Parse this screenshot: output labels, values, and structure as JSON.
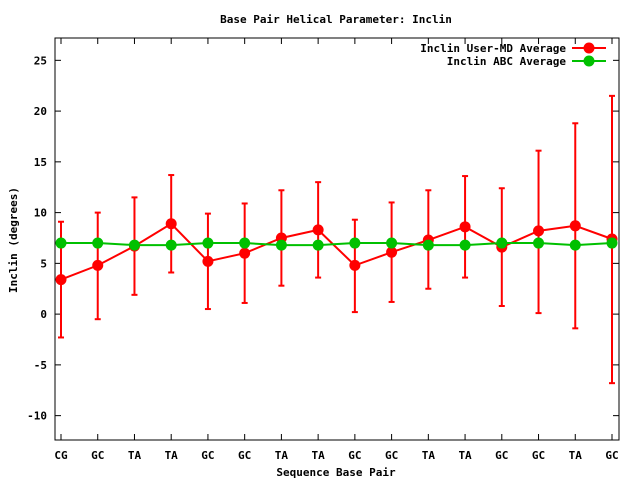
{
  "chart_data": {
    "type": "line",
    "title": "Base Pair Helical Parameter: Inclin",
    "xlabel": "Sequence Base Pair",
    "ylabel": "Inclin (degrees)",
    "ylim": [
      -12.4,
      27.2
    ],
    "yticks": [
      -10,
      -5,
      0,
      5,
      10,
      15,
      20,
      25
    ],
    "grid": false,
    "legend_position": "top-right",
    "categories": [
      "CG",
      "GC",
      "TA",
      "TA",
      "GC",
      "GC",
      "TA",
      "TA",
      "GC",
      "GC",
      "TA",
      "TA",
      "GC",
      "GC",
      "TA",
      "GC"
    ],
    "series": [
      {
        "name": "Inclin User-MD Average",
        "color": "#ff0000",
        "values": [
          3.4,
          4.8,
          6.7,
          8.9,
          5.2,
          6.0,
          7.5,
          8.3,
          4.8,
          6.1,
          7.3,
          8.6,
          6.6,
          8.2,
          8.7,
          7.4
        ],
        "error_high": [
          9.1,
          10.0,
          11.5,
          13.7,
          9.9,
          10.9,
          12.2,
          13.0,
          9.3,
          11.0,
          12.2,
          13.6,
          12.4,
          16.1,
          18.8,
          21.5
        ],
        "error_low": [
          -2.3,
          -0.5,
          1.9,
          4.1,
          0.5,
          1.1,
          2.8,
          3.6,
          0.2,
          1.2,
          2.5,
          3.6,
          0.8,
          0.1,
          -1.4,
          -6.8
        ]
      },
      {
        "name": "Inclin ABC Average",
        "color": "#00c000",
        "values": [
          7.0,
          7.0,
          6.8,
          6.8,
          7.0,
          7.0,
          6.8,
          6.8,
          7.0,
          7.0,
          6.8,
          6.8,
          7.0,
          7.0,
          6.8,
          7.0
        ]
      }
    ]
  }
}
